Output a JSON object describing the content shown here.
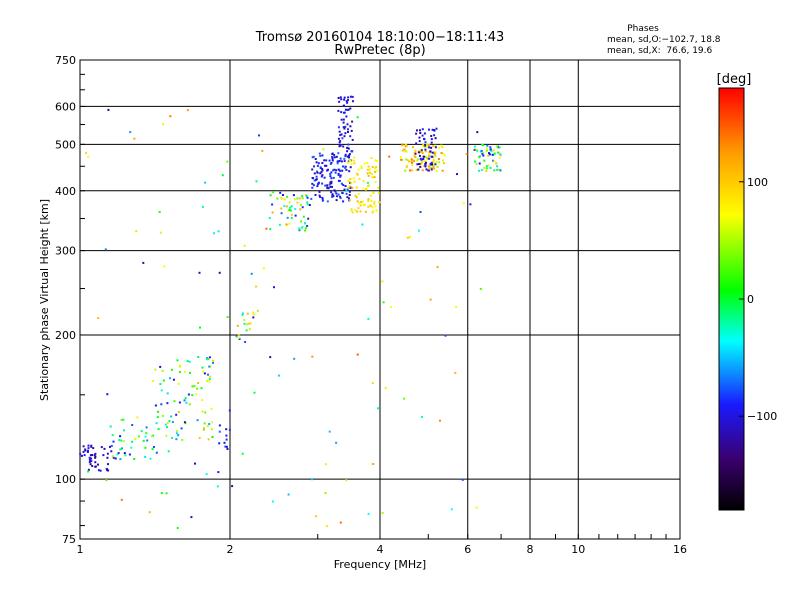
{
  "header": {
    "title_line1": "Tromsø 20160104 18:10:00−18:11:43",
    "title_line2": "RwPretec (8p)",
    "phases_title": "Phases",
    "phases_line1": "mean, sd,O:−102.7, 18.8",
    "phases_line2": "mean, sd,X:  76.6, 19.6"
  },
  "colorbar": {
    "label": "[deg]",
    "tick_labels": [
      "100",
      "0",
      "−100"
    ],
    "tick_values": [
      100,
      0,
      -100
    ],
    "range": [
      -180,
      180
    ]
  },
  "chart_data": {
    "type": "scatter",
    "xlabel": "Frequency [MHz]",
    "ylabel": "Stationary phase Virtual Height [km]",
    "xscale": "log",
    "yscale": "log",
    "xlim": [
      1,
      16
    ],
    "ylim": [
      75,
      750
    ],
    "xticks": [
      1,
      2,
      4,
      6,
      8,
      10,
      16
    ],
    "xtick_labels": [
      "1",
      "2",
      "4",
      "6",
      "8",
      "10",
      "16"
    ],
    "yticks": [
      75,
      100,
      200,
      300,
      400,
      500,
      600,
      750
    ],
    "ytick_labels": [
      "75",
      "100",
      "200",
      "300",
      "400",
      "500",
      "600",
      "750"
    ],
    "grid_x": [
      2,
      4,
      6,
      8,
      10
    ],
    "grid_y": [
      100,
      200,
      300,
      400,
      500,
      600
    ],
    "grid": true,
    "clusters": [
      {
        "x_range": [
          1.0,
          1.15
        ],
        "h_range": [
          104,
          118
        ],
        "phase_range": [
          -130,
          -90
        ],
        "count": 45
      },
      {
        "x_range": [
          1.15,
          1.45
        ],
        "h_range": [
          110,
          135
        ],
        "phase_range": [
          -120,
          60
        ],
        "count": 45
      },
      {
        "x_range": [
          1.4,
          1.85
        ],
        "h_range": [
          120,
          180
        ],
        "phase_range": [
          -120,
          110
        ],
        "count": 90
      },
      {
        "x_range": [
          1.9,
          2.0
        ],
        "h_range": [
          115,
          130
        ],
        "phase_range": [
          -120,
          -80
        ],
        "count": 10
      },
      {
        "x_range": [
          2.05,
          2.3
        ],
        "h_range": [
          190,
          230
        ],
        "phase_range": [
          -110,
          120
        ],
        "count": 20
      },
      {
        "x_range": [
          2.4,
          2.9
        ],
        "h_range": [
          330,
          400
        ],
        "phase_range": [
          -110,
          120
        ],
        "count": 60
      },
      {
        "x_range": [
          2.9,
          3.5
        ],
        "h_range": [
          380,
          480
        ],
        "phase_range": [
          -120,
          -70
        ],
        "count": 150
      },
      {
        "x_range": [
          3.3,
          3.55
        ],
        "h_range": [
          480,
          640
        ],
        "phase_range": [
          -120,
          -80
        ],
        "count": 60
      },
      {
        "x_range": [
          3.45,
          4.0
        ],
        "h_range": [
          360,
          470
        ],
        "phase_range": [
          60,
          110
        ],
        "count": 90
      },
      {
        "x_range": [
          4.4,
          5.4
        ],
        "h_range": [
          440,
          500
        ],
        "phase_range": [
          40,
          140
        ],
        "count": 100
      },
      {
        "x_range": [
          4.7,
          5.2
        ],
        "h_range": [
          440,
          540
        ],
        "phase_range": [
          -130,
          -80
        ],
        "count": 60
      },
      {
        "x_range": [
          6.2,
          7.0
        ],
        "h_range": [
          440,
          500
        ],
        "phase_range": [
          -120,
          110
        ],
        "count": 60
      },
      {
        "x_range": [
          1.0,
          6.5
        ],
        "h_range": [
          78,
          600
        ],
        "phase_range": [
          -130,
          150
        ],
        "count": 110
      }
    ]
  }
}
